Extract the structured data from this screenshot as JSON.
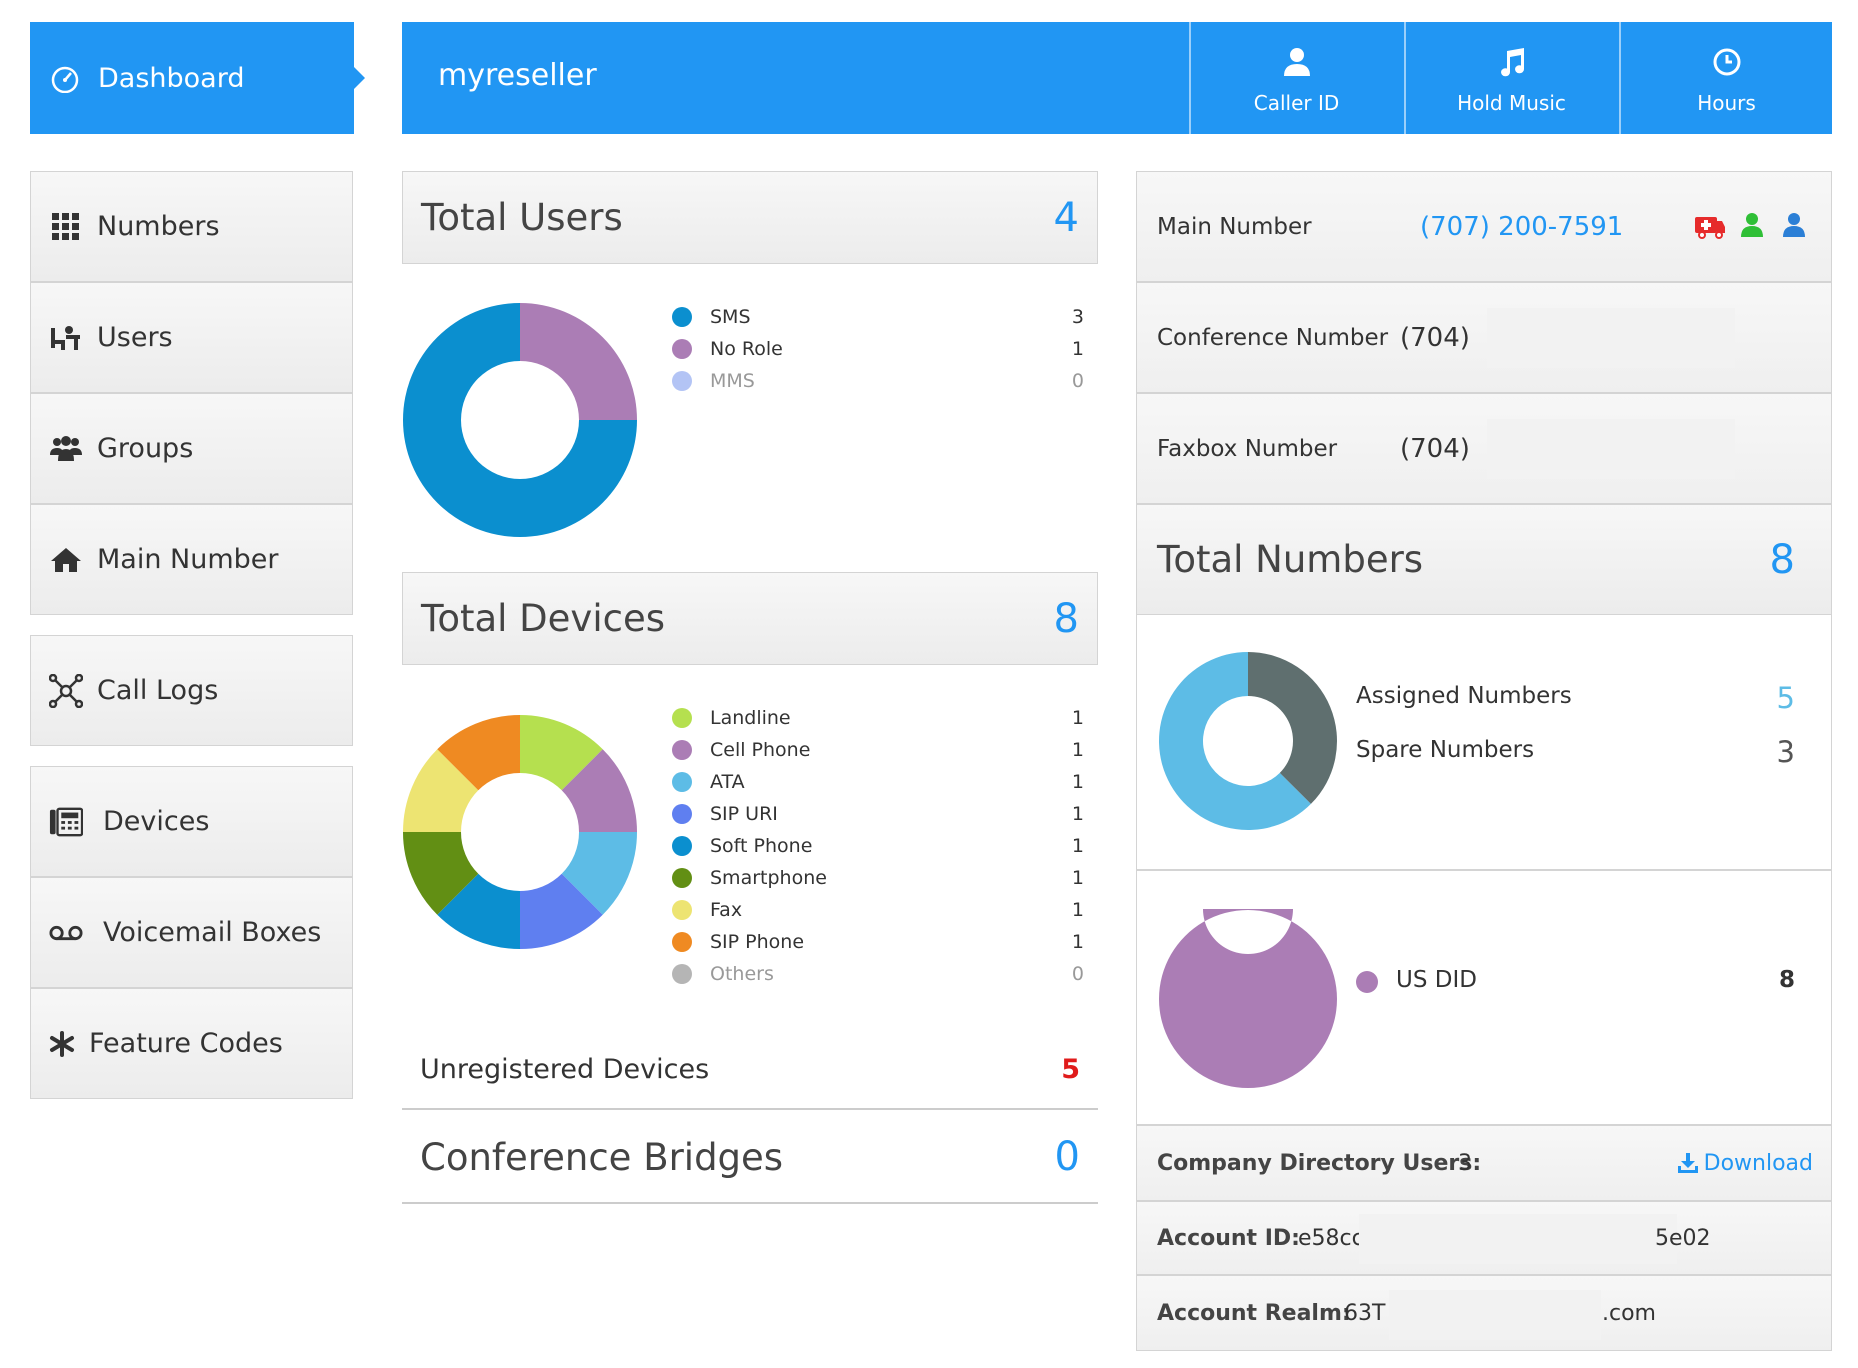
{
  "sidebar": {
    "dashboard_label": "Dashboard",
    "items": [
      {
        "label": "Numbers",
        "icon": "grid-icon"
      },
      {
        "label": "Users",
        "icon": "users-desk-icon"
      },
      {
        "label": "Groups",
        "icon": "group-icon"
      },
      {
        "label": "Main Number",
        "icon": "home-icon"
      },
      {
        "label": "Call Logs",
        "icon": "network-icon"
      },
      {
        "label": "Devices",
        "icon": "phone-device-icon"
      },
      {
        "label": "Voicemail Boxes",
        "icon": "voicemail-icon"
      },
      {
        "label": "Feature Codes",
        "icon": "asterisk-icon"
      }
    ]
  },
  "header": {
    "account_name": "myreseller",
    "buttons": [
      {
        "label": "Caller ID",
        "icon": "user-icon"
      },
      {
        "label": "Hold Music",
        "icon": "music-note-icon"
      },
      {
        "label": "Hours",
        "icon": "clock-icon"
      }
    ]
  },
  "total_users": {
    "title": "Total Users",
    "count": "4",
    "legend": [
      {
        "label": "SMS",
        "count": "3",
        "color": "#0b8fcf"
      },
      {
        "label": "No Role",
        "count": "1",
        "color": "#ab7db5"
      },
      {
        "label": "MMS",
        "count": "0",
        "color": "#b3c4f5"
      }
    ]
  },
  "total_devices": {
    "title": "Total Devices",
    "count": "8",
    "legend": [
      {
        "label": "Landline",
        "count": "1",
        "color": "#b5e04f"
      },
      {
        "label": "Cell Phone",
        "count": "1",
        "color": "#ab7db5"
      },
      {
        "label": "ATA",
        "count": "1",
        "color": "#5dbce6"
      },
      {
        "label": "SIP URI",
        "count": "1",
        "color": "#5f7ff0"
      },
      {
        "label": "Soft Phone",
        "count": "1",
        "color": "#0b8fcf"
      },
      {
        "label": "Smartphone",
        "count": "1",
        "color": "#628f14"
      },
      {
        "label": "Fax",
        "count": "1",
        "color": "#ede472"
      },
      {
        "label": "SIP Phone",
        "count": "1",
        "color": "#ef8a22"
      },
      {
        "label": "Others",
        "count": "0",
        "color": "#b5b5b5"
      }
    ],
    "unregistered_label": "Unregistered Devices",
    "unregistered_count": "5"
  },
  "conference_bridges": {
    "title": "Conference Bridges",
    "count": "0"
  },
  "numbers_info": {
    "main_number_label": "Main Number",
    "main_number_value": "(707) 200-7591",
    "main_number_icons": [
      "ambulance-icon",
      "user-green-icon",
      "user-blue-icon"
    ],
    "conference_label": "Conference Number",
    "conference_value": "(704)",
    "faxbox_label": "Faxbox Number",
    "faxbox_value": "(704)"
  },
  "total_numbers": {
    "title": "Total Numbers",
    "count": "8",
    "assigned_label": "Assigned Numbers",
    "assigned_count": "5",
    "spare_label": "Spare Numbers",
    "spare_count": "3",
    "assigned_color": "#5dbce6",
    "spare_color": "#5f6f6f",
    "us_did_label": "US DID",
    "us_did_count": "8",
    "us_did_color": "#ab7db5"
  },
  "account": {
    "directory_label": "Company Directory Users:",
    "directory_count": "3",
    "download_label": "Download",
    "account_id_label": "Account ID:",
    "account_id_start": "e58cc",
    "account_id_end": "5e02",
    "realm_label": "Account Realm:",
    "realm_start": "63T",
    "realm_end": ".com"
  }
}
